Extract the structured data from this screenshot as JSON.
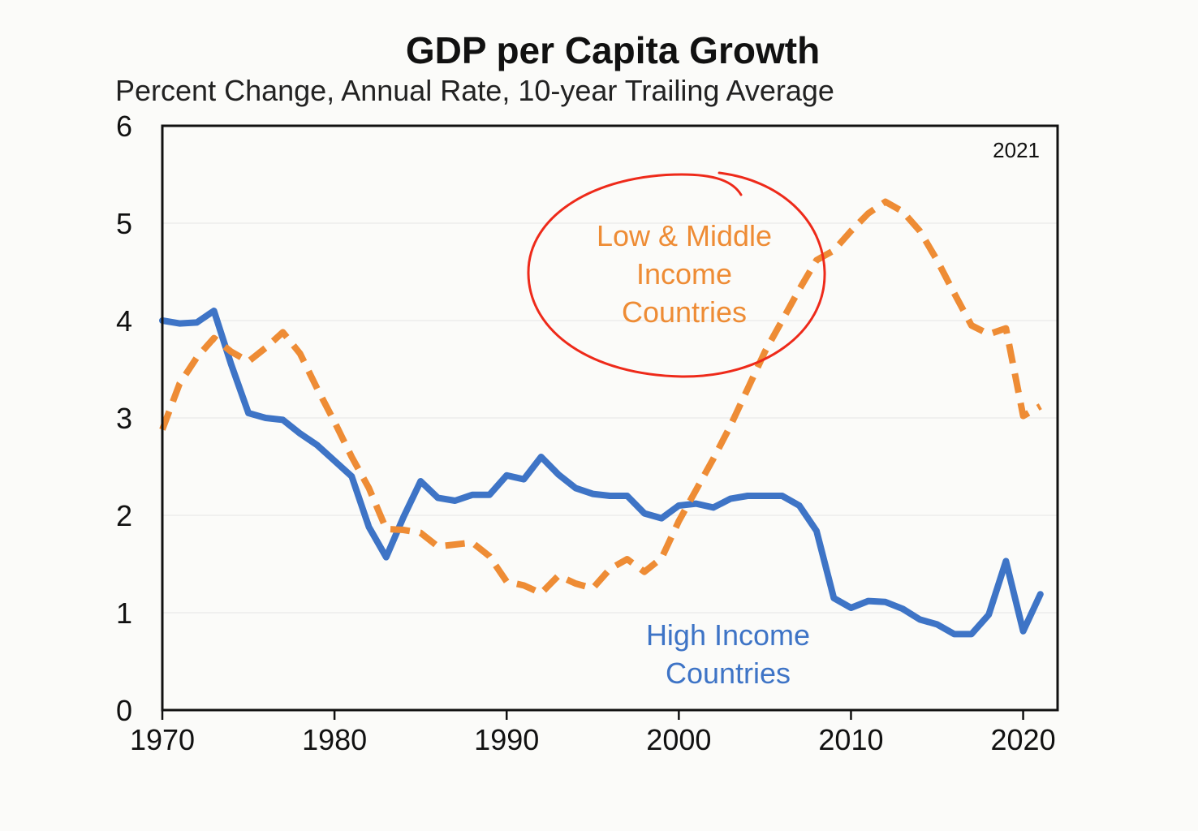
{
  "colors": {
    "background": "#fbfbf9",
    "high_income": "#3e74c6",
    "low_middle_income": "#ee8c35",
    "annotation": "#ee2a1a",
    "axis": "#111111",
    "grid": "#ececec"
  },
  "chart_data": {
    "type": "line",
    "title": "GDP per Capita Growth",
    "subtitle": "Percent Change, Annual Rate, 10-year Trailing Average",
    "note": "2021",
    "xlim": [
      1970,
      2022
    ],
    "ylim": [
      0,
      6
    ],
    "xticks": [
      "1970",
      "1980",
      "1990",
      "2000",
      "2010",
      "2020"
    ],
    "yticks": [
      "0",
      "1",
      "2",
      "3",
      "4",
      "5",
      "6"
    ],
    "grid": "horizontal",
    "series": [
      {
        "name": "High Income Countries",
        "label_lines": [
          "High Income",
          "Countries"
        ],
        "style": "solid",
        "color": "#3e74c6",
        "x": [
          1970,
          1971,
          1972,
          1973,
          1974,
          1975,
          1976,
          1977,
          1978,
          1979,
          1980,
          1981,
          1982,
          1983,
          1984,
          1985,
          1986,
          1987,
          1988,
          1989,
          1990,
          1991,
          1992,
          1993,
          1994,
          1995,
          1996,
          1997,
          1998,
          1999,
          2000,
          2001,
          2002,
          2003,
          2004,
          2005,
          2006,
          2007,
          2008,
          2009,
          2010,
          2011,
          2012,
          2013,
          2014,
          2015,
          2016,
          2017,
          2018,
          2019,
          2020,
          2021
        ],
        "y": [
          4.0,
          3.97,
          3.98,
          4.1,
          3.55,
          3.05,
          3.0,
          2.98,
          2.84,
          2.72,
          2.56,
          2.4,
          1.88,
          1.57,
          1.98,
          2.35,
          2.18,
          2.15,
          2.21,
          2.21,
          2.41,
          2.37,
          2.6,
          2.42,
          2.28,
          2.22,
          2.2,
          2.2,
          2.02,
          1.97,
          2.1,
          2.12,
          2.08,
          2.17,
          2.2,
          2.2,
          2.2,
          2.1,
          1.84,
          1.15,
          1.05,
          1.12,
          1.11,
          1.04,
          0.93,
          0.88,
          0.78,
          0.78,
          0.98,
          1.53,
          0.81,
          1.19
        ]
      },
      {
        "name": "Low & Middle Income Countries",
        "label_lines": [
          "Low & Middle",
          "Income",
          "Countries"
        ],
        "style": "dashed",
        "color": "#ee8c35",
        "x": [
          1970,
          1971,
          1972,
          1973,
          1974,
          1975,
          1976,
          1977,
          1978,
          1979,
          1980,
          1981,
          1982,
          1983,
          1984,
          1985,
          1986,
          1987,
          1988,
          1989,
          1990,
          1991,
          1992,
          1993,
          1994,
          1995,
          1996,
          1997,
          1998,
          1999,
          2000,
          2001,
          2002,
          2003,
          2004,
          2005,
          2006,
          2007,
          2008,
          2009,
          2010,
          2011,
          2012,
          2013,
          2014,
          2015,
          2016,
          2017,
          2018,
          2019,
          2020,
          2021
        ],
        "y": [
          2.88,
          3.35,
          3.62,
          3.82,
          3.68,
          3.58,
          3.72,
          3.88,
          3.66,
          3.3,
          2.96,
          2.6,
          2.28,
          1.86,
          1.85,
          1.82,
          1.68,
          1.7,
          1.72,
          1.58,
          1.32,
          1.28,
          1.2,
          1.38,
          1.3,
          1.25,
          1.45,
          1.55,
          1.42,
          1.56,
          1.94,
          2.26,
          2.58,
          2.92,
          3.3,
          3.68,
          4.0,
          4.32,
          4.62,
          4.72,
          4.92,
          5.1,
          5.22,
          5.12,
          4.92,
          4.62,
          4.28,
          3.95,
          3.86,
          3.92,
          3.02,
          3.12
        ]
      }
    ]
  }
}
